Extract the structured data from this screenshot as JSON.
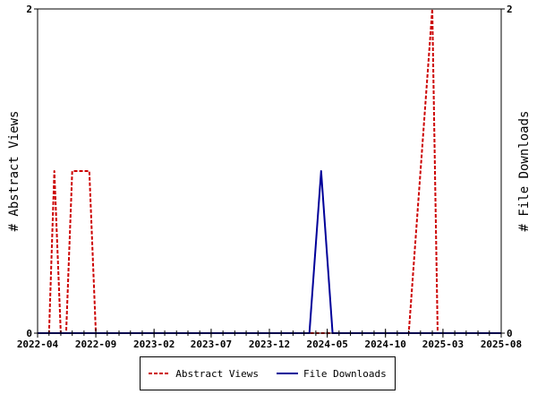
{
  "chart_data": {
    "type": "line",
    "x_ticks": [
      "2022-04",
      "2022-09",
      "2023-02",
      "2023-07",
      "2023-12",
      "2024-05",
      "2024-10",
      "2025-03",
      "2025-08"
    ],
    "xlim": [
      "2022-04",
      "2025-08"
    ],
    "ylabel": "# Abstract Views",
    "y2label": "# File Downloads",
    "ylim": [
      0,
      2
    ],
    "y2lim": [
      0,
      2
    ],
    "y_ticks": [
      "0",
      "2"
    ],
    "y2_ticks": [
      "0",
      "2"
    ],
    "grid": false,
    "legend_position": "bottom",
    "series": [
      {
        "name": "Abstract Views",
        "color": "#cc0000",
        "style": "dashed",
        "axis": "left",
        "points": [
          [
            "2022-04-01",
            0
          ],
          [
            "2022-05-01",
            0
          ],
          [
            "2022-05-15",
            1
          ],
          [
            "2022-06-01",
            0
          ],
          [
            "2022-06-15",
            0
          ],
          [
            "2022-07-01",
            1
          ],
          [
            "2022-08-15",
            1
          ],
          [
            "2022-09-01",
            0
          ],
          [
            "2022-09-15",
            0
          ],
          [
            "2024-12-01",
            0
          ],
          [
            "2025-02-01",
            2
          ],
          [
            "2025-02-15",
            0
          ],
          [
            "2025-08-01",
            0
          ]
        ]
      },
      {
        "name": "File Downloads",
        "color": "#000099",
        "style": "solid",
        "axis": "right",
        "points": [
          [
            "2022-04-01",
            0
          ],
          [
            "2024-03-15",
            0
          ],
          [
            "2024-04-15",
            1
          ],
          [
            "2024-05-15",
            0
          ],
          [
            "2025-08-01",
            0
          ]
        ]
      }
    ]
  }
}
